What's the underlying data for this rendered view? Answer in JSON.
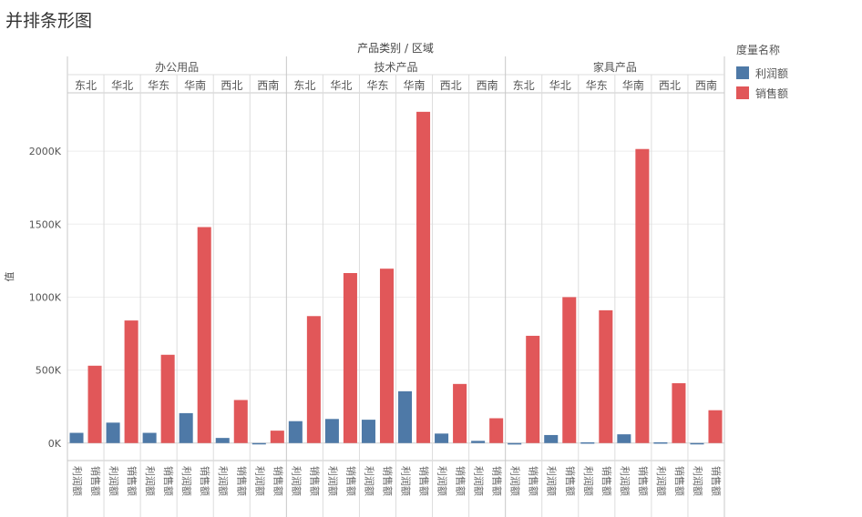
{
  "title": "并排条形图",
  "header": {
    "columns_label": "产品类别 / 区域"
  },
  "legend": {
    "title": "度量名称",
    "items": [
      {
        "label": "利润额",
        "color": "#4e79a7"
      },
      {
        "label": "销售额",
        "color": "#e15759"
      }
    ]
  },
  "chart_data": {
    "type": "bar",
    "ylabel": "值",
    "ylim": [
      -120,
      2400
    ],
    "yticks": [
      0,
      500,
      1000,
      1500,
      2000
    ],
    "ytick_labels": [
      "0K",
      "500K",
      "1000K",
      "1500K",
      "2000K"
    ],
    "value_unit": "K",
    "categories": [
      "办公用品",
      "技术产品",
      "家具产品"
    ],
    "regions": [
      "东北",
      "华北",
      "华东",
      "华南",
      "西北",
      "西南"
    ],
    "measures": [
      "利润额",
      "销售额"
    ],
    "series": [
      {
        "name": "利润额",
        "color": "#4e79a7",
        "values": [
          [
            70,
            140,
            70,
            205,
            35,
            -5
          ],
          [
            150,
            165,
            160,
            355,
            65,
            15
          ],
          [
            -10,
            55,
            5,
            60,
            5,
            -5
          ]
        ]
      },
      {
        "name": "销售额",
        "color": "#e15759",
        "values": [
          [
            530,
            840,
            605,
            1480,
            295,
            85
          ],
          [
            870,
            1165,
            1195,
            2270,
            405,
            170
          ],
          [
            735,
            1000,
            910,
            2015,
            410,
            225
          ]
        ]
      }
    ]
  }
}
